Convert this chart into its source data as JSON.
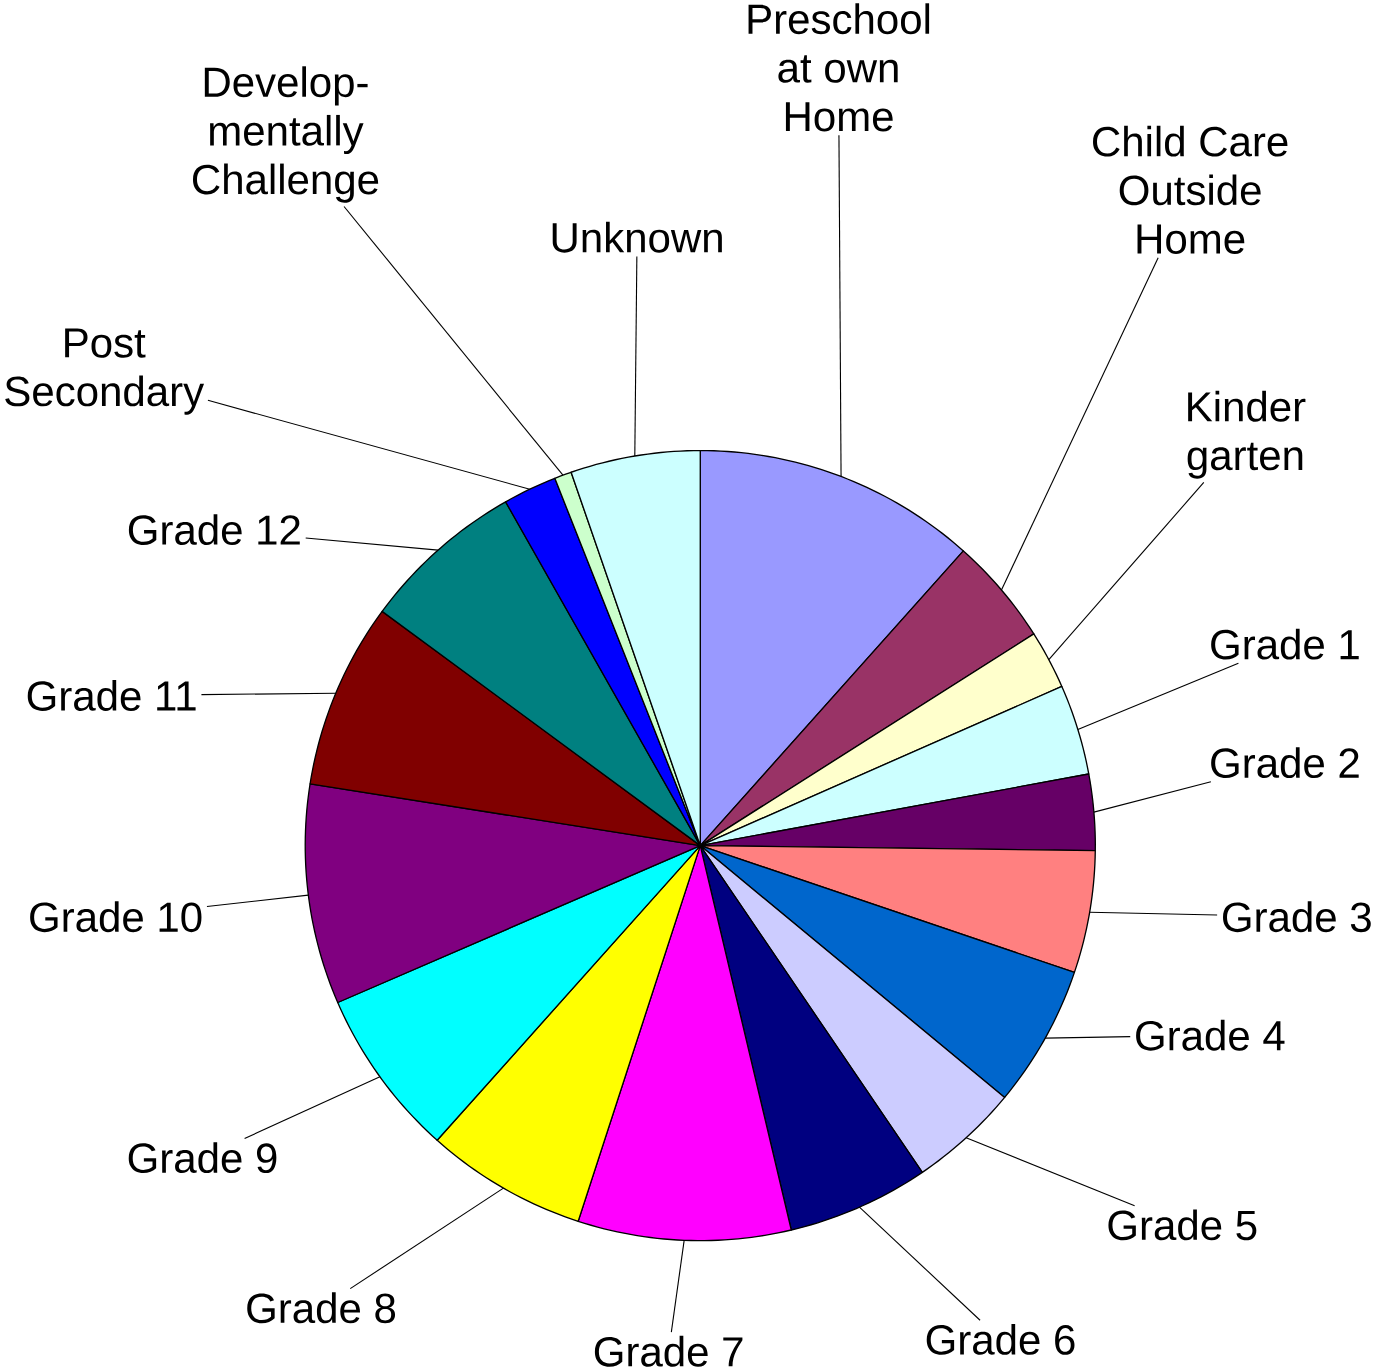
{
  "chart_data": {
    "type": "pie",
    "categories": [
      "Preschool at own Home",
      "Child Care Outside Home",
      "Kinder garten",
      "Grade 1",
      "Grade 2",
      "Grade 3",
      "Grade 4",
      "Grade 5",
      "Grade 6",
      "Grade 7",
      "Grade 8",
      "Grade 9",
      "Grade 10",
      "Grade 11",
      "Grade 12",
      "Post Secondary",
      "Develop-mentally Challenge",
      "Unknown"
    ],
    "values": [
      11.6,
      4.4,
      2.4,
      3.7,
      3.1,
      5.0,
      5.8,
      4.5,
      5.8,
      8.7,
      6.6,
      6.9,
      9.0,
      7.6,
      6.7,
      2.2,
      0.7,
      5.3
    ],
    "colors": [
      "#9999ff",
      "#993366",
      "#ffffcc",
      "#ccffff",
      "#660066",
      "#ff8080",
      "#0066cc",
      "#ccccff",
      "#000080",
      "#ff00ff",
      "#ffff00",
      "#00ffff",
      "#800080",
      "#800000",
      "#008080",
      "#0000ff",
      "#ccffcc",
      "#ccffff"
    ]
  }
}
